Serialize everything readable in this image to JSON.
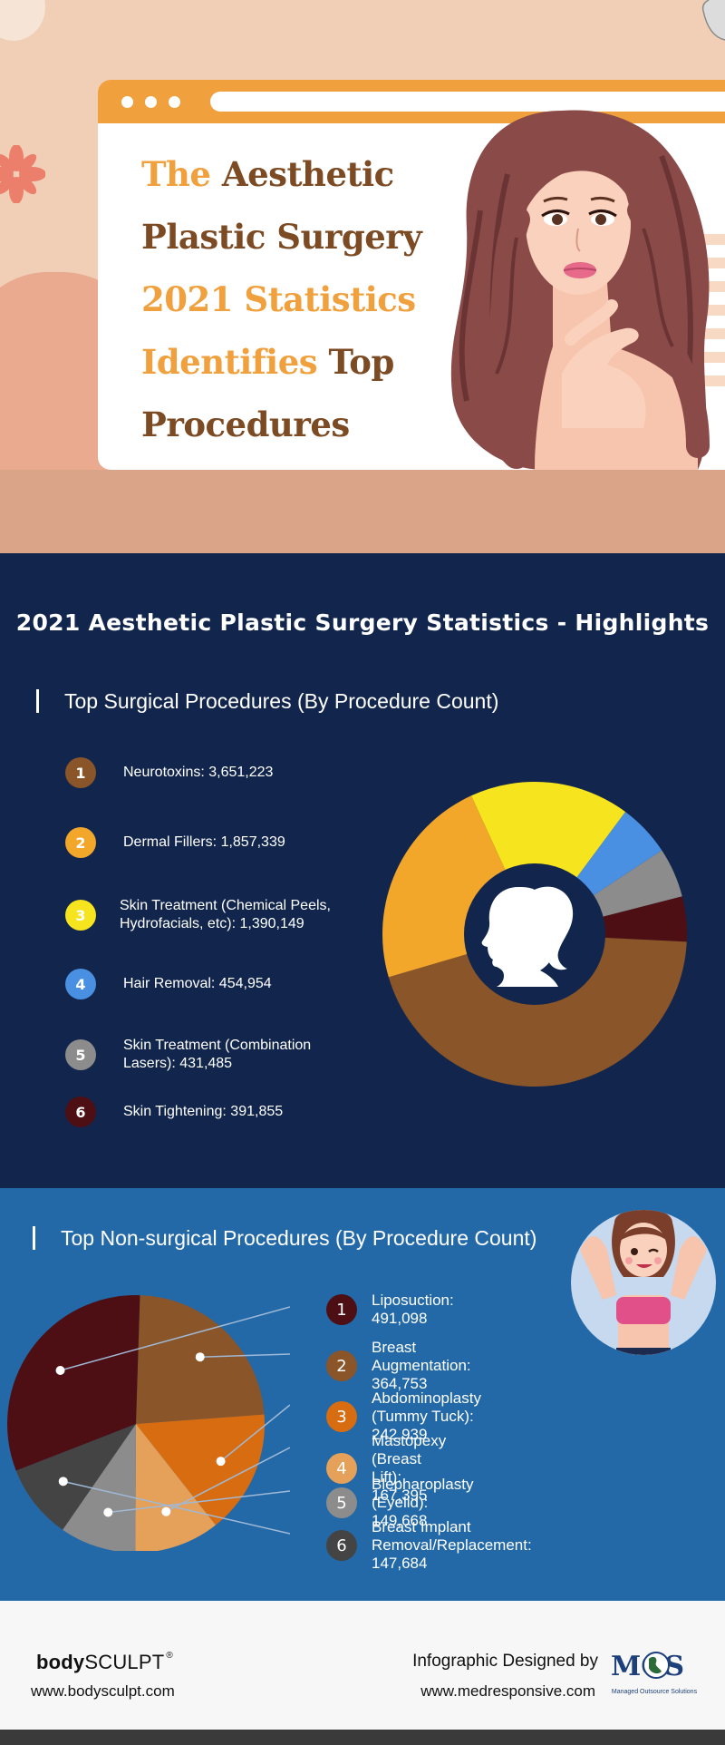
{
  "hero": {
    "title_line1_a": "The",
    "title_line1_b": "Aesthetic",
    "title_line2": "Plastic Surgery",
    "title_line3": "2021 Statistics",
    "title_line4_a": "Identifies",
    "title_line4_b": "Top",
    "title_line5": "Procedures",
    "colors": {
      "orange": "#f0a03c",
      "brown": "#7c4a23",
      "peach": "#f0cfb6"
    }
  },
  "highlights_title": "2021 Aesthetic Plastic Surgery Statistics - Highlights",
  "surgical": {
    "heading": "Top Surgical Procedures (By Procedure Count)",
    "items": [
      {
        "num": "1",
        "text": "Neurotoxins: 3,651,223",
        "color": "#8a5529"
      },
      {
        "num": "2",
        "text": "Dermal Fillers: 1,857,339",
        "color": "#f2a62a"
      },
      {
        "num": "3",
        "text": "Skin Treatment (Chemical Peels, Hydrofacials, etc): 1,390,149",
        "color": "#f6e41e"
      },
      {
        "num": "4",
        "text": "Hair Removal: 454,954",
        "color": "#4a90e2"
      },
      {
        "num": "5",
        "text": "Skin Treatment (Combination Lasers): 431,485",
        "color": "#8c8c8c"
      },
      {
        "num": "6",
        "text": "Skin Tightening: 391,855",
        "color": "#4d0f14"
      }
    ]
  },
  "nonsurgical": {
    "heading": "Top Non-surgical Procedures (By Procedure Count)",
    "items": [
      {
        "num": "1",
        "text": "Liposuction: 491,098",
        "color": "#4d0f14"
      },
      {
        "num": "2",
        "text": "Breast Augmentation: 364,753",
        "color": "#8a5529"
      },
      {
        "num": "3",
        "text": "Abdominoplasty (Tummy Tuck): 242,939",
        "color": "#d86c10"
      },
      {
        "num": "4",
        "text": "Mastopexy (Breast Lift): 167,395",
        "color": "#e5a05a"
      },
      {
        "num": "5",
        "text": "Blepharoplasty (Eyelid): 149,668",
        "color": "#8c8c8c"
      },
      {
        "num": "6",
        "text": "Breast Implant Removal/Replacement: 147,684",
        "color": "#444444"
      }
    ]
  },
  "chart_data": [
    {
      "type": "pie",
      "categories": [
        "Neurotoxins",
        "Dermal Fillers",
        "Skin Treatment (Chemical Peels, Hydrofacials, etc)",
        "Hair Removal",
        "Skin Treatment (Combination Lasers)",
        "Skin Tightening"
      ],
      "values": [
        3651223,
        1857339,
        1390149,
        454954,
        431485,
        391855
      ],
      "colors": [
        "#8a5529",
        "#f2a62a",
        "#f6e41e",
        "#4a90e2",
        "#8c8c8c",
        "#4d0f14"
      ],
      "title": "Top Surgical Procedures (By Procedure Count)",
      "style": "donut"
    },
    {
      "type": "pie",
      "categories": [
        "Liposuction",
        "Breast Augmentation",
        "Abdominoplasty (Tummy Tuck)",
        "Mastopexy (Breast Lift)",
        "Blepharoplasty (Eyelid)",
        "Breast Implant Removal/Replacement"
      ],
      "values": [
        491098,
        364753,
        242939,
        167395,
        149668,
        147684
      ],
      "colors": [
        "#4d0f14",
        "#8a5529",
        "#d86c10",
        "#e5a05a",
        "#8c8c8c",
        "#444444"
      ],
      "title": "Top Non-surgical Procedures (By Procedure Count)"
    }
  ],
  "footer": {
    "brand_bold": "body",
    "brand_light": "SCULPT",
    "brand_reg": "®",
    "brand_url": "www.bodysculpt.com",
    "designed_by": "Infographic Designed by",
    "designer_url": "www.medresponsive.com",
    "mos_logo": "MOS",
    "mos_tagline": "Managed Outsource Solutions"
  }
}
